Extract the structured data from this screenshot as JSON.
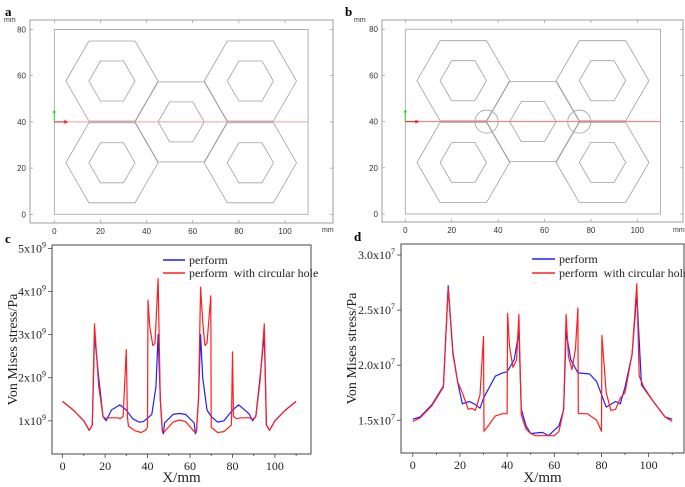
{
  "panels": [
    {
      "label": "a",
      "unit_label_y": "mm",
      "unit_label_x": "mm",
      "xticks": [
        0,
        20,
        40,
        60,
        80,
        100
      ],
      "yticks": [
        0,
        20,
        40,
        60,
        80
      ],
      "xlim": [
        -10,
        121
      ],
      "ylim": [
        -4,
        84
      ],
      "plate": [
        0,
        0,
        110,
        80
      ],
      "outer_hexagons": [
        [
          25,
          57.7
        ],
        [
          55,
          40
        ],
        [
          85,
          57.7
        ],
        [
          25,
          22.3
        ],
        [
          85,
          22.3
        ]
      ],
      "outer_radius": 20,
      "inner_radius": 10,
      "circular_holes": [],
      "probe_line_y": 40,
      "probe_line_color": "#ff9a9a",
      "geometry_color": "#a0a0a0"
    },
    {
      "label": "b",
      "unit_label_y": "mm",
      "unit_label_x": "mm",
      "xticks": [
        0,
        20,
        40,
        60,
        80,
        100
      ],
      "yticks": [
        0,
        20,
        40,
        60,
        80
      ],
      "xlim": [
        -10,
        121
      ],
      "ylim": [
        -4,
        84
      ],
      "plate": [
        0,
        0,
        110,
        80
      ],
      "outer_hexagons": [
        [
          25,
          57.7
        ],
        [
          55,
          40
        ],
        [
          85,
          57.7
        ],
        [
          25,
          22.3
        ],
        [
          85,
          22.3
        ]
      ],
      "outer_radius": 20,
      "inner_radius": 10,
      "circular_holes": [
        [
          35,
          40,
          5
        ],
        [
          75,
          40,
          5
        ]
      ],
      "probe_line_y": 40,
      "probe_line_color": "#ff7070",
      "geometry_color": "#a0a0a0"
    }
  ],
  "chart_data": [
    {
      "panel_label": "c",
      "type": "line",
      "xlabel": "X/mm",
      "ylabel": "Von Mises stress/Pa",
      "xlim": [
        -5,
        117
      ],
      "ylim": [
        230000000.0,
        5080000000.0
      ],
      "xticks": [
        0,
        20,
        40,
        60,
        80,
        100
      ],
      "yticks": [
        {
          "value": 1000000000.0,
          "base": "1x10",
          "exp": "9"
        },
        {
          "value": 2000000000.0,
          "base": "2x10",
          "exp": "9"
        },
        {
          "value": 3000000000.0,
          "base": "3x10",
          "exp": "9"
        },
        {
          "value": 4000000000.0,
          "base": "4x10",
          "exp": "9"
        },
        {
          "value": 5000000000.0,
          "base": "5x10",
          "exp": "9"
        }
      ],
      "y_scale": 1000000000.0,
      "grid": false,
      "legend": "top-right",
      "series": [
        {
          "name": "perform",
          "color": "#1f1fff",
          "x": [
            0,
            5,
            10,
            12.5,
            14,
            15,
            17,
            19,
            20.5,
            22,
            23,
            27,
            30,
            33,
            36,
            38,
            42,
            44,
            45,
            46,
            47,
            47.5,
            48,
            52,
            55,
            58,
            62,
            62.5,
            63,
            64,
            65,
            66,
            68,
            70,
            73,
            76,
            80,
            83,
            87,
            88,
            89.5,
            91,
            93,
            95,
            96,
            97.5,
            100,
            105,
            110
          ],
          "y": [
            1.45,
            1.25,
            1.0,
            0.78,
            0.9,
            3.0,
            2.0,
            1.1,
            1.0,
            1.15,
            1.25,
            1.37,
            1.25,
            1.05,
            0.97,
            0.98,
            1.15,
            1.8,
            3.0,
            1.5,
            0.75,
            0.7,
            0.95,
            1.15,
            1.17,
            1.15,
            0.95,
            0.7,
            0.75,
            1.5,
            3.0,
            2.0,
            1.25,
            1.1,
            0.97,
            1.0,
            1.25,
            1.37,
            1.2,
            1.15,
            1.0,
            1.1,
            2.0,
            3.0,
            0.9,
            0.78,
            1.0,
            1.25,
            1.45
          ]
        },
        {
          "name": "perform  with circular hole",
          "color": "#ff1f1f",
          "x": [
            0,
            5,
            10,
            12.5,
            14,
            15,
            17,
            19,
            20.5,
            22,
            26,
            27,
            28.5,
            30,
            30.5,
            31,
            34,
            37,
            39,
            40,
            40.2,
            41,
            42.5,
            43.5,
            45,
            46,
            47,
            48,
            52,
            55,
            58,
            62,
            63,
            64,
            65,
            66,
            67,
            68,
            69.8,
            70,
            73,
            76,
            79.5,
            80,
            80.5,
            82,
            84,
            88,
            89.5,
            91,
            93,
            95,
            96,
            97.5,
            100,
            105,
            110
          ],
          "y": [
            1.45,
            1.25,
            1.0,
            0.78,
            0.9,
            3.25,
            1.8,
            1.1,
            1.05,
            1.07,
            1.07,
            1.05,
            1.1,
            2.65,
            1.1,
            0.88,
            0.77,
            0.73,
            0.78,
            0.85,
            3.8,
            3.2,
            2.75,
            2.8,
            4.3,
            1.5,
            0.75,
            0.75,
            0.97,
            1.02,
            0.98,
            0.75,
            0.75,
            1.5,
            4.1,
            3.3,
            2.75,
            2.8,
            3.9,
            0.85,
            0.73,
            0.75,
            0.9,
            2.6,
            1.1,
            1.05,
            1.07,
            1.07,
            1.03,
            1.1,
            1.9,
            3.25,
            0.9,
            0.78,
            1.0,
            1.25,
            1.45
          ]
        }
      ]
    },
    {
      "panel_label": "d",
      "type": "line",
      "xlabel": "X/mm",
      "ylabel": "Von Mises stress/Pa",
      "xlim": [
        -5,
        115
      ],
      "ylim": [
        12030000.0,
        31000000.0
      ],
      "xticks": [
        0,
        20,
        40,
        60,
        80,
        100
      ],
      "yticks": [
        {
          "value": 15000000.0,
          "base": "1.5x10",
          "exp": "7"
        },
        {
          "value": 20000000.0,
          "base": "2.0x10",
          "exp": "7"
        },
        {
          "value": 25000000.0,
          "base": "2.5x10",
          "exp": "7"
        },
        {
          "value": 30000000.0,
          "base": "3.0x10",
          "exp": "7"
        }
      ],
      "y_scale": 10000000.0,
      "grid": false,
      "legend": "top-right",
      "series": [
        {
          "name": "perform",
          "color": "#1f1fff",
          "x": [
            0,
            3,
            8,
            13,
            15,
            17,
            19,
            21,
            24,
            26,
            28.5,
            30,
            35,
            38,
            40,
            43,
            45,
            46,
            48,
            50,
            55,
            57.5,
            60,
            62,
            64,
            65,
            67,
            70,
            75,
            78,
            82,
            86,
            88,
            90,
            93,
            95,
            97,
            102,
            107,
            110
          ],
          "y": [
            1.51,
            1.53,
            1.64,
            1.81,
            2.72,
            2.12,
            1.85,
            1.65,
            1.67,
            1.65,
            1.61,
            1.7,
            1.9,
            1.93,
            1.94,
            2.05,
            2.3,
            1.6,
            1.45,
            1.38,
            1.39,
            1.36,
            1.41,
            1.45,
            1.6,
            2.3,
            2.05,
            1.93,
            1.92,
            1.85,
            1.62,
            1.67,
            1.65,
            1.8,
            2.1,
            2.65,
            1.82,
            1.67,
            1.53,
            1.51
          ]
        },
        {
          "name": "perform  with circular hole",
          "color": "#ff1f1f",
          "x": [
            0,
            3,
            8,
            13,
            15,
            17,
            19,
            21,
            23.5,
            25,
            26.5,
            28.5,
            30,
            30.2,
            32,
            35,
            38,
            40,
            40.2,
            41,
            42.5,
            44,
            45,
            46,
            48,
            50,
            52,
            58,
            60,
            62,
            64,
            65,
            66,
            67.5,
            69,
            70,
            70.2,
            74,
            78,
            80,
            80.2,
            82,
            84,
            86,
            88,
            90,
            93,
            95,
            96,
            98,
            102,
            107,
            110
          ],
          "y": [
            1.49,
            1.52,
            1.63,
            1.8,
            2.7,
            2.1,
            1.85,
            1.75,
            1.6,
            1.61,
            1.59,
            1.73,
            2.26,
            1.4,
            1.45,
            1.54,
            1.56,
            1.56,
            2.47,
            2.17,
            1.98,
            2.05,
            2.46,
            1.55,
            1.42,
            1.38,
            1.36,
            1.36,
            1.36,
            1.4,
            1.6,
            2.46,
            2.08,
            1.96,
            2.15,
            2.52,
            1.56,
            1.56,
            1.5,
            1.4,
            2.27,
            1.75,
            1.59,
            1.6,
            1.7,
            1.75,
            2.1,
            2.74,
            1.9,
            1.8,
            1.67,
            1.53,
            1.49
          ]
        }
      ]
    }
  ]
}
